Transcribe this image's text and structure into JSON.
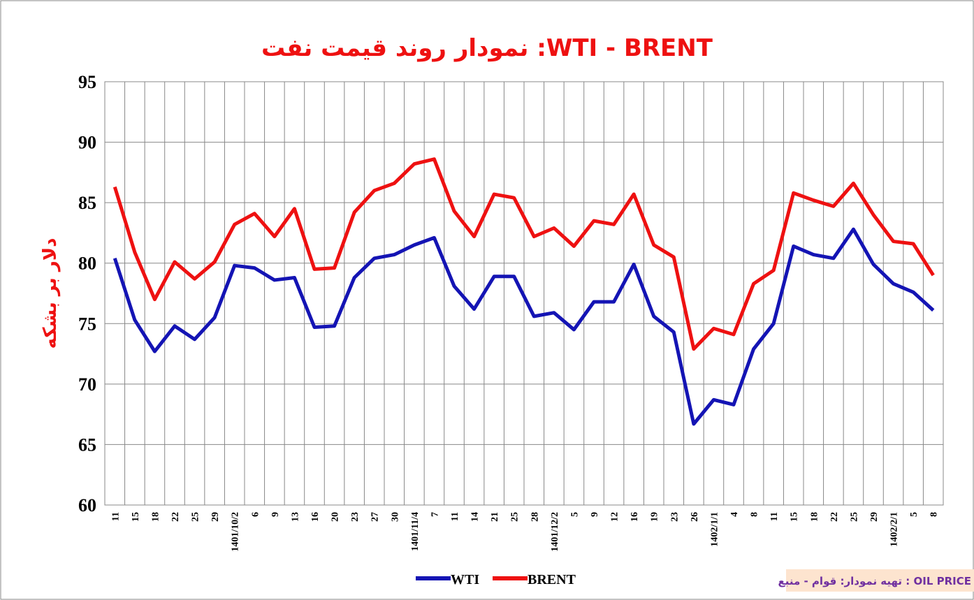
{
  "chart_data": {
    "type": "line",
    "title": "نمودار روند قیمت نفت :WTI - BRENT",
    "y_label": "دلار بر بشکه",
    "source_note": "تهیه نمودار: قوام - منبع : OIL PRICE",
    "categories": [
      "11",
      "15",
      "18",
      "22",
      "25",
      "29",
      "1401/10/2",
      "6",
      "9",
      "13",
      "16",
      "20",
      "23",
      "27",
      "30",
      "1401/11/4",
      "7",
      "11",
      "14",
      "21",
      "25",
      "28",
      "1401/12/2",
      "5",
      "9",
      "12",
      "16",
      "19",
      "23",
      "26",
      "1402/1/1",
      "4",
      "8",
      "11",
      "15",
      "18",
      "22",
      "25",
      "29",
      "1402/2/1",
      "5",
      "8"
    ],
    "series": [
      {
        "name": "WTI",
        "color": "#1414b4",
        "values": [
          80.4,
          75.3,
          72.7,
          74.8,
          73.7,
          75.5,
          79.8,
          79.6,
          78.6,
          78.8,
          74.7,
          74.8,
          78.8,
          80.4,
          80.7,
          81.5,
          82.1,
          78.1,
          76.2,
          78.9,
          78.9,
          75.6,
          75.9,
          74.5,
          76.8,
          76.8,
          79.9,
          75.6,
          74.3,
          66.7,
          68.7,
          68.3,
          72.9,
          75.0,
          81.4,
          80.7,
          80.4,
          82.8,
          79.9,
          78.3,
          77.6,
          76.1
        ]
      },
      {
        "name": "BRENT",
        "color": "#ee1111",
        "values": [
          86.3,
          80.9,
          77.0,
          80.1,
          78.7,
          80.1,
          83.2,
          84.1,
          82.2,
          84.5,
          79.5,
          79.6,
          84.2,
          86.0,
          86.6,
          88.2,
          88.6,
          84.3,
          82.2,
          85.7,
          85.4,
          82.2,
          82.9,
          81.4,
          83.5,
          83.2,
          85.7,
          81.5,
          80.5,
          72.9,
          74.6,
          74.1,
          78.3,
          79.4,
          85.8,
          85.2,
          84.7,
          86.6,
          84.0,
          81.8,
          81.6,
          79.0
        ]
      }
    ],
    "ylim": [
      60,
      95
    ],
    "yticks": [
      60,
      65,
      70,
      75,
      80,
      85,
      90,
      95
    ],
    "grid": true,
    "legend": "bottom"
  }
}
